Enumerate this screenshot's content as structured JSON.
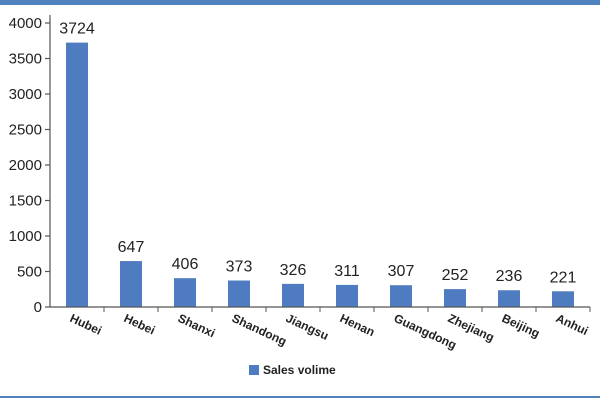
{
  "chart_data": {
    "type": "bar",
    "categories": [
      "Hubei",
      "Hebei",
      "Shanxi",
      "Shandong",
      "Jiangsu",
      "Henan",
      "Guangdong",
      "Zhejiang",
      "Beijing",
      "Anhui"
    ],
    "series": [
      {
        "name": "Sales volime",
        "values": [
          3724,
          647,
          406,
          373,
          326,
          311,
          307,
          252,
          236,
          221
        ],
        "color": "#4f7cc1"
      }
    ],
    "yticks": [
      0,
      500,
      1000,
      1500,
      2000,
      2500,
      3000,
      3500,
      4000
    ],
    "ylim": [
      0,
      4000
    ],
    "data_labels": [
      "3724",
      "647",
      "406",
      "373",
      "326",
      "311",
      "307",
      "252",
      "236",
      "221"
    ],
    "legend_position": "bottom-center",
    "grid": false
  },
  "colors": {
    "frame": "#4f81bd",
    "bar": "#4f7cc1",
    "axis": "#555555"
  }
}
